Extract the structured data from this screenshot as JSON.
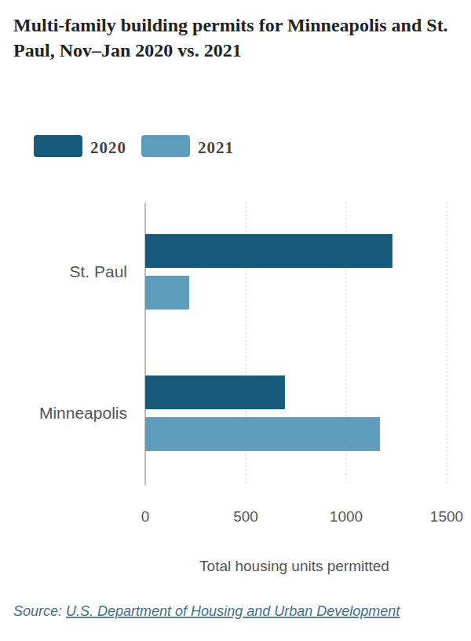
{
  "chart_data": {
    "type": "bar",
    "orientation": "horizontal",
    "title": "Multi-family building permits for Minneapolis and St. Paul, Nov–Jan 2020 vs. 2021",
    "categories": [
      "St. Paul",
      "Minneapolis"
    ],
    "series": [
      {
        "name": "2020",
        "color": "#175a7c",
        "values": [
          1230,
          695
        ]
      },
      {
        "name": "2021",
        "color": "#5f9bba",
        "values": [
          219,
          1168
        ]
      }
    ],
    "xlim": [
      0,
      1500
    ],
    "xticks": [
      0,
      500,
      1000,
      1500
    ],
    "x_label": "Total housing units permitted",
    "source_label": "Source:",
    "source": "U.S. Department of Housing and Urban Development",
    "grid": true,
    "legend": "top-left"
  }
}
